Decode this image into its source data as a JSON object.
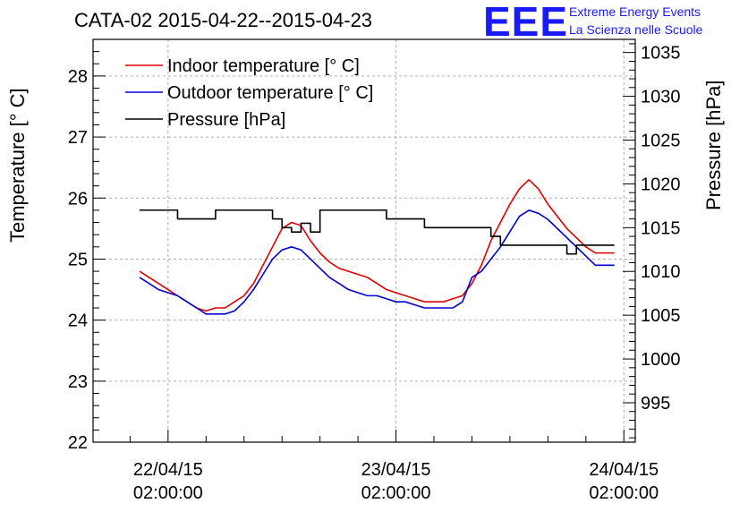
{
  "logo": {
    "mark": "EEE",
    "line1": "Extreme Energy Events",
    "line2": "La Scienza nelle Scuole"
  },
  "chart_data": {
    "type": "line",
    "title": "CATA-02 2015-04-22--2015-04-23",
    "ylabel": "Temperature [° C]",
    "y2label": "Pressure [hPa]",
    "ylim": [
      22,
      28.6
    ],
    "y2lim": [
      990.5,
      1036.5
    ],
    "grid": true,
    "legend_position": "top-left",
    "xticks": [
      {
        "t": 0,
        "label1": "22/04/15",
        "label2": "02:00:00"
      },
      {
        "t": 24,
        "label1": "23/04/15",
        "label2": "02:00:00"
      },
      {
        "t": 48,
        "label1": "24/04/15",
        "label2": "02:00:00"
      }
    ],
    "xlim": [
      -7.9,
      49.2
    ],
    "yticks": [
      "22",
      "23",
      "24",
      "25",
      "26",
      "27",
      "28"
    ],
    "y2ticks": [
      "995",
      "1000",
      "1005",
      "1010",
      "1015",
      "1020",
      "1025",
      "1030",
      "1035"
    ],
    "series": [
      {
        "name": "Indoor temperature [° C]",
        "axis": "left",
        "color": "#e00000",
        "x": [
          -3,
          -2,
          -1,
          0,
          1,
          2,
          3,
          4,
          5,
          6,
          7,
          8,
          9,
          10,
          11,
          12,
          13,
          14,
          15,
          16,
          17,
          18,
          19,
          20,
          21,
          22,
          23,
          24,
          25,
          26,
          27,
          28,
          29,
          30,
          31,
          32,
          33,
          34,
          35,
          36,
          37,
          38,
          39,
          40,
          41,
          42,
          43,
          44,
          45,
          46,
          47
        ],
        "y": [
          24.8,
          24.7,
          24.6,
          24.5,
          24.4,
          24.3,
          24.2,
          24.15,
          24.2,
          24.2,
          24.3,
          24.4,
          24.6,
          24.9,
          25.2,
          25.5,
          25.6,
          25.55,
          25.3,
          25.1,
          24.95,
          24.85,
          24.8,
          24.75,
          24.7,
          24.6,
          24.5,
          24.45,
          24.4,
          24.35,
          24.3,
          24.3,
          24.3,
          24.35,
          24.4,
          24.6,
          24.9,
          25.3,
          25.6,
          25.9,
          26.15,
          26.3,
          26.15,
          25.9,
          25.7,
          25.5,
          25.35,
          25.2,
          25.1,
          25.1,
          25.1
        ],
        "values": [
          24.8,
          24.7,
          24.6,
          24.5,
          24.4,
          24.3,
          24.2,
          24.15,
          24.2,
          24.2,
          24.3,
          24.4,
          24.6,
          24.9,
          25.2,
          25.5,
          25.6,
          25.55,
          25.3,
          25.1,
          24.95,
          24.85,
          24.8,
          24.75,
          24.7,
          24.6,
          24.5,
          24.45,
          24.4,
          24.35,
          24.3,
          24.3,
          24.3,
          24.35,
          24.4,
          24.6,
          24.9,
          25.3,
          25.6,
          25.9,
          26.15,
          26.3,
          26.15,
          25.9,
          25.7,
          25.5,
          25.35,
          25.2,
          25.1,
          25.1,
          25.1
        ]
      },
      {
        "name": "Outdoor temperature [° C]",
        "axis": "left",
        "color": "#0000d0",
        "x": [
          -3,
          -2,
          -1,
          0,
          1,
          2,
          3,
          4,
          5,
          6,
          7,
          8,
          9,
          10,
          11,
          12,
          13,
          14,
          15,
          16,
          17,
          18,
          19,
          20,
          21,
          22,
          23,
          24,
          25,
          26,
          27,
          28,
          29,
          30,
          31,
          32,
          33,
          34,
          35,
          36,
          37,
          38,
          39,
          40,
          41,
          42,
          43,
          44,
          45,
          46,
          47
        ],
        "y": [
          24.7,
          24.6,
          24.5,
          24.45,
          24.4,
          24.3,
          24.2,
          24.1,
          24.1,
          24.1,
          24.15,
          24.3,
          24.5,
          24.75,
          25.0,
          25.15,
          25.2,
          25.15,
          25.0,
          24.85,
          24.7,
          24.6,
          24.5,
          24.45,
          24.4,
          24.4,
          24.35,
          24.3,
          24.3,
          24.25,
          24.2,
          24.2,
          24.2,
          24.2,
          24.3,
          24.7,
          24.8,
          25.0,
          25.2,
          25.45,
          25.7,
          25.8,
          25.75,
          25.65,
          25.5,
          25.35,
          25.2,
          25.05,
          24.9,
          24.9,
          24.9
        ],
        "values": [
          24.7,
          24.6,
          24.5,
          24.45,
          24.4,
          24.3,
          24.2,
          24.1,
          24.1,
          24.1,
          24.15,
          24.3,
          24.5,
          24.75,
          25.0,
          25.15,
          25.2,
          25.15,
          25.0,
          24.85,
          24.7,
          24.6,
          24.5,
          24.45,
          24.4,
          24.4,
          24.35,
          24.3,
          24.3,
          24.25,
          24.2,
          24.2,
          24.2,
          24.2,
          24.3,
          24.7,
          24.8,
          25.0,
          25.2,
          25.45,
          25.7,
          25.8,
          25.75,
          25.65,
          25.5,
          25.35,
          25.2,
          25.05,
          24.9,
          24.9,
          24.9
        ]
      },
      {
        "name": "Pressure [hPa]",
        "axis": "right",
        "color": "#000000",
        "x": [
          -3,
          0,
          1,
          4,
          5,
          8,
          9,
          10,
          11,
          12,
          13,
          14,
          15,
          16,
          17,
          18,
          19,
          20,
          22,
          23,
          24,
          25,
          26,
          27,
          28,
          29,
          30,
          32,
          33,
          34,
          35,
          36,
          37,
          38,
          39,
          40,
          41,
          42,
          43,
          44,
          45,
          46,
          47
        ],
        "y": [
          1017,
          1017,
          1016,
          1016,
          1017,
          1017,
          1017,
          1017,
          1016,
          1015,
          1014.5,
          1015.5,
          1014.5,
          1017,
          1017,
          1017,
          1017,
          1017,
          1017,
          1016,
          1016,
          1016,
          1016,
          1015,
          1015,
          1015,
          1015,
          1015,
          1015,
          1014,
          1013,
          1013,
          1013,
          1013,
          1013,
          1013,
          1013,
          1012,
          1013,
          1013,
          1013,
          1013,
          1013
        ],
        "values": [
          1017,
          1017,
          1016,
          1016,
          1017,
          1017,
          1017,
          1017,
          1016,
          1015,
          1014.5,
          1015.5,
          1014.5,
          1017,
          1017,
          1017,
          1017,
          1017,
          1017,
          1016,
          1016,
          1016,
          1016,
          1015,
          1015,
          1015,
          1015,
          1015,
          1015,
          1014,
          1013,
          1013,
          1013,
          1013,
          1013,
          1013,
          1013,
          1012,
          1013,
          1013,
          1013,
          1013,
          1013
        ]
      }
    ]
  }
}
